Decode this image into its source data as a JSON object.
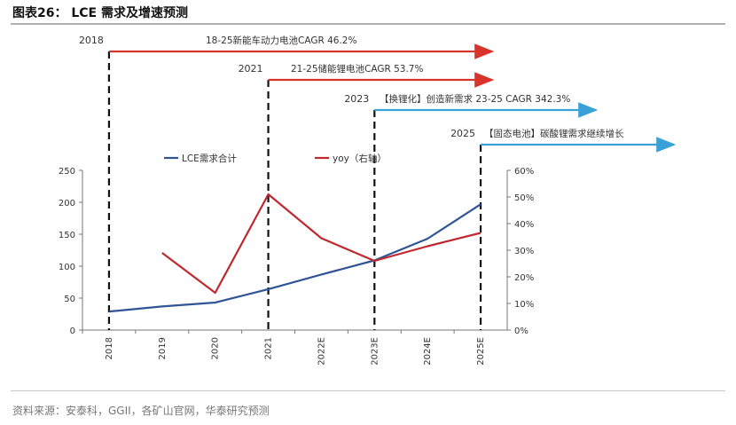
{
  "header": {
    "title": "图表26：   LCE 需求及增速预测"
  },
  "source": "资料来源：安泰科，GGII，各矿山官网，华泰研究预测",
  "milestones": [
    {
      "year": "2018",
      "label": "18-25新能车动力电池CAGR 46.2%",
      "color": "#d9342b",
      "x_index": 0
    },
    {
      "year": "2021",
      "label": "21-25储能锂电池CAGR 53.7%",
      "color": "#d9342b",
      "x_index": 3
    },
    {
      "year": "2023",
      "label": "【换锂化】创造新需求   23-25 CAGR 342.3%",
      "color": "#3aa0d8",
      "x_index": 5
    },
    {
      "year": "2025",
      "label": "【固态电池】碳酸锂需求继续增长",
      "color": "#3aa0d8",
      "x_index": 7
    }
  ],
  "chart_data": {
    "type": "line",
    "categories": [
      "2018",
      "2019",
      "2020",
      "2021",
      "2022E",
      "2023E",
      "2024E",
      "2025E"
    ],
    "series": [
      {
        "name": "LCE需求合计",
        "axis": "left",
        "color": "#2f5597",
        "values": [
          29,
          37,
          43,
          64,
          87,
          109,
          143,
          197
        ]
      },
      {
        "name": "yoy（右轴）",
        "axis": "right",
        "color": "#c0282d",
        "values": [
          null,
          0.29,
          0.14,
          0.51,
          0.345,
          0.26,
          0.315,
          0.365
        ]
      }
    ],
    "y_left": {
      "min": 0,
      "max": 250,
      "ticks": [
        "0",
        "50",
        "100",
        "150",
        "200",
        "250"
      ]
    },
    "y_right": {
      "min": 0,
      "max": 0.6,
      "ticks": [
        "0%",
        "10%",
        "20%",
        "30%",
        "40%",
        "50%",
        "60%"
      ]
    },
    "legend_position": "top"
  }
}
